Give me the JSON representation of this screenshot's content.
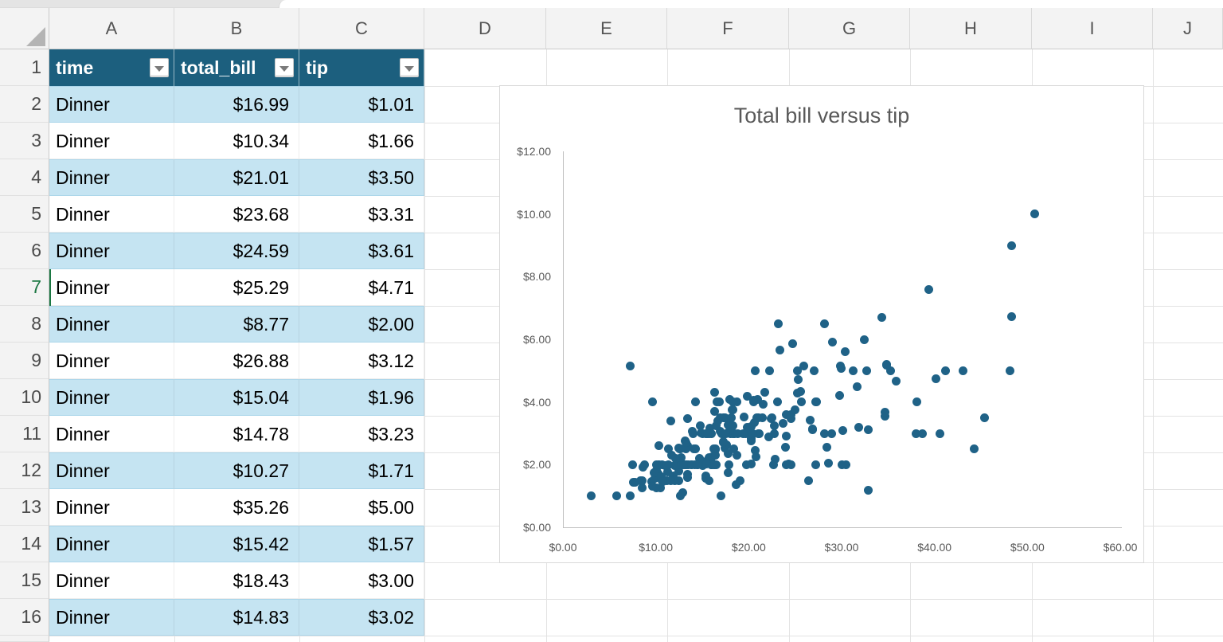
{
  "sheet": {
    "column_letters": [
      "A",
      "B",
      "C",
      "D",
      "E",
      "F",
      "G",
      "H",
      "I",
      "J"
    ],
    "row_numbers": [
      "1",
      "2",
      "3",
      "4",
      "5",
      "6",
      "7",
      "8",
      "9",
      "10",
      "11",
      "12",
      "13",
      "14",
      "15",
      "16"
    ],
    "active_row": "7",
    "active_cell": "A7"
  },
  "table": {
    "headers": [
      "time",
      "total_bill",
      "tip"
    ],
    "rows": [
      {
        "time": "Dinner",
        "total_bill": "$16.99",
        "tip": "$1.01"
      },
      {
        "time": "Dinner",
        "total_bill": "$10.34",
        "tip": "$1.66"
      },
      {
        "time": "Dinner",
        "total_bill": "$21.01",
        "tip": "$3.50"
      },
      {
        "time": "Dinner",
        "total_bill": "$23.68",
        "tip": "$3.31"
      },
      {
        "time": "Dinner",
        "total_bill": "$24.59",
        "tip": "$3.61"
      },
      {
        "time": "Dinner",
        "total_bill": "$25.29",
        "tip": "$4.71"
      },
      {
        "time": "Dinner",
        "total_bill": "$8.77",
        "tip": "$2.00"
      },
      {
        "time": "Dinner",
        "total_bill": "$26.88",
        "tip": "$3.12"
      },
      {
        "time": "Dinner",
        "total_bill": "$15.04",
        "tip": "$1.96"
      },
      {
        "time": "Dinner",
        "total_bill": "$14.78",
        "tip": "$3.23"
      },
      {
        "time": "Dinner",
        "total_bill": "$10.27",
        "tip": "$1.71"
      },
      {
        "time": "Dinner",
        "total_bill": "$35.26",
        "tip": "$5.00"
      },
      {
        "time": "Dinner",
        "total_bill": "$15.42",
        "tip": "$1.57"
      },
      {
        "time": "Dinner",
        "total_bill": "$18.43",
        "tip": "$3.00"
      },
      {
        "time": "Dinner",
        "total_bill": "$14.83",
        "tip": "$3.02"
      }
    ]
  },
  "colors": {
    "table_header": "#1C5F7E",
    "band_blue": "#C5E4F2",
    "active_green": "#1b7742",
    "chart_text": "#595959",
    "point_color": "#1F6287"
  },
  "chart_data": {
    "type": "scatter",
    "title": "Total bill versus tip",
    "xlabel": "",
    "ylabel": "",
    "xlim": [
      0,
      60
    ],
    "ylim": [
      0,
      12
    ],
    "x_tick_values": [
      0,
      10,
      20,
      30,
      40,
      50,
      60
    ],
    "x_tick_labels": [
      "$0.00",
      "$10.00",
      "$20.00",
      "$30.00",
      "$40.00",
      "$50.00",
      "$60.00"
    ],
    "y_tick_values": [
      0,
      2,
      4,
      6,
      8,
      10,
      12
    ],
    "y_tick_labels": [
      "$0.00",
      "$2.00",
      "$4.00",
      "$6.00",
      "$8.00",
      "$10.00",
      "$12.00"
    ],
    "grid": false,
    "legend": false,
    "point_color": "#1F6287",
    "points": [
      [
        16.99,
        1.01
      ],
      [
        10.34,
        1.66
      ],
      [
        21.01,
        3.5
      ],
      [
        23.68,
        3.31
      ],
      [
        24.59,
        3.61
      ],
      [
        25.29,
        4.71
      ],
      [
        8.77,
        2.0
      ],
      [
        26.88,
        3.12
      ],
      [
        15.04,
        1.96
      ],
      [
        14.78,
        3.23
      ],
      [
        10.27,
        1.71
      ],
      [
        35.26,
        5.0
      ],
      [
        15.42,
        1.57
      ],
      [
        18.43,
        3.0
      ],
      [
        14.83,
        3.02
      ],
      [
        21.58,
        3.92
      ],
      [
        10.33,
        1.67
      ],
      [
        16.29,
        3.71
      ],
      [
        16.97,
        3.5
      ],
      [
        20.65,
        3.35
      ],
      [
        17.92,
        4.08
      ],
      [
        20.29,
        2.75
      ],
      [
        15.77,
        2.23
      ],
      [
        39.42,
        7.58
      ],
      [
        19.82,
        3.18
      ],
      [
        17.81,
        2.34
      ],
      [
        13.37,
        2.0
      ],
      [
        12.69,
        2.0
      ],
      [
        21.7,
        4.3
      ],
      [
        19.65,
        3.0
      ],
      [
        9.55,
        1.45
      ],
      [
        18.35,
        2.5
      ],
      [
        15.06,
        3.0
      ],
      [
        20.69,
        2.45
      ],
      [
        17.78,
        3.27
      ],
      [
        24.06,
        3.6
      ],
      [
        16.31,
        2.0
      ],
      [
        16.93,
        3.07
      ],
      [
        18.69,
        2.31
      ],
      [
        31.27,
        5.0
      ],
      [
        16.04,
        2.24
      ],
      [
        17.46,
        2.54
      ],
      [
        13.94,
        3.06
      ],
      [
        9.68,
        1.32
      ],
      [
        30.4,
        5.6
      ],
      [
        18.29,
        3.0
      ],
      [
        22.23,
        5.0
      ],
      [
        32.4,
        6.0
      ],
      [
        28.55,
        2.05
      ],
      [
        18.04,
        3.0
      ],
      [
        12.54,
        2.5
      ],
      [
        10.29,
        2.6
      ],
      [
        34.81,
        5.2
      ],
      [
        9.94,
        1.56
      ],
      [
        25.56,
        4.34
      ],
      [
        19.49,
        3.51
      ],
      [
        38.01,
        3.0
      ],
      [
        26.41,
        1.5
      ],
      [
        11.24,
        1.76
      ],
      [
        48.27,
        6.73
      ],
      [
        20.29,
        3.21
      ],
      [
        13.81,
        2.0
      ],
      [
        11.02,
        1.98
      ],
      [
        18.29,
        3.76
      ],
      [
        17.59,
        2.64
      ],
      [
        20.08,
        3.15
      ],
      [
        16.45,
        2.47
      ],
      [
        3.07,
        1.0
      ],
      [
        20.23,
        2.01
      ],
      [
        15.01,
        2.09
      ],
      [
        12.02,
        1.97
      ],
      [
        17.07,
        3.0
      ],
      [
        26.86,
        3.14
      ],
      [
        25.28,
        5.0
      ],
      [
        14.73,
        2.2
      ],
      [
        10.51,
        1.25
      ],
      [
        17.92,
        3.08
      ],
      [
        27.2,
        4.0
      ],
      [
        22.76,
        3.0
      ],
      [
        17.29,
        2.71
      ],
      [
        19.44,
        3.0
      ],
      [
        16.66,
        3.4
      ],
      [
        10.07,
        1.83
      ],
      [
        32.68,
        5.0
      ],
      [
        15.98,
        2.03
      ],
      [
        34.83,
        5.17
      ],
      [
        13.03,
        2.0
      ],
      [
        18.28,
        4.0
      ],
      [
        24.71,
        5.85
      ],
      [
        21.16,
        3.0
      ],
      [
        28.97,
        3.0
      ],
      [
        22.49,
        3.5
      ],
      [
        5.75,
        1.0
      ],
      [
        16.32,
        4.3
      ],
      [
        22.75,
        3.25
      ],
      [
        40.17,
        4.73
      ],
      [
        27.28,
        4.0
      ],
      [
        12.03,
        1.5
      ],
      [
        21.01,
        3.0
      ],
      [
        12.46,
        1.5
      ],
      [
        11.35,
        2.5
      ],
      [
        15.38,
        3.0
      ],
      [
        44.3,
        2.5
      ],
      [
        22.42,
        3.48
      ],
      [
        20.92,
        4.08
      ],
      [
        15.36,
        1.64
      ],
      [
        20.49,
        4.06
      ],
      [
        25.21,
        4.29
      ],
      [
        18.24,
        3.76
      ],
      [
        14.31,
        4.0
      ],
      [
        14.0,
        3.0
      ],
      [
        7.25,
        1.0
      ],
      [
        38.07,
        4.0
      ],
      [
        23.95,
        2.55
      ],
      [
        25.71,
        4.0
      ],
      [
        17.31,
        3.5
      ],
      [
        29.93,
        5.07
      ],
      [
        10.65,
        1.5
      ],
      [
        12.43,
        1.8
      ],
      [
        24.08,
        2.92
      ],
      [
        11.69,
        2.31
      ],
      [
        13.42,
        1.68
      ],
      [
        14.26,
        2.5
      ],
      [
        15.95,
        2.0
      ],
      [
        12.48,
        2.52
      ],
      [
        29.8,
        4.2
      ],
      [
        8.52,
        1.48
      ],
      [
        14.52,
        2.0
      ],
      [
        11.38,
        2.0
      ],
      [
        22.82,
        2.18
      ],
      [
        19.08,
        1.5
      ],
      [
        20.27,
        2.83
      ],
      [
        11.17,
        1.5
      ],
      [
        12.26,
        2.0
      ],
      [
        18.26,
        3.25
      ],
      [
        8.51,
        1.25
      ],
      [
        10.33,
        2.0
      ],
      [
        14.15,
        2.0
      ],
      [
        16.0,
        2.0
      ],
      [
        13.16,
        2.75
      ],
      [
        17.47,
        3.5
      ],
      [
        34.3,
        6.7
      ],
      [
        41.19,
        5.0
      ],
      [
        27.05,
        5.0
      ],
      [
        16.43,
        2.3
      ],
      [
        8.35,
        1.5
      ],
      [
        18.64,
        1.36
      ],
      [
        11.87,
        1.63
      ],
      [
        9.78,
        1.73
      ],
      [
        7.51,
        2.0
      ],
      [
        14.07,
        2.5
      ],
      [
        13.13,
        2.0
      ],
      [
        17.26,
        2.74
      ],
      [
        24.55,
        2.0
      ],
      [
        19.77,
        2.0
      ],
      [
        29.85,
        5.14
      ],
      [
        48.17,
        5.0
      ],
      [
        25.0,
        3.75
      ],
      [
        13.39,
        2.61
      ],
      [
        16.49,
        2.0
      ],
      [
        21.5,
        3.5
      ],
      [
        12.66,
        2.5
      ],
      [
        16.21,
        2.0
      ],
      [
        13.81,
        2.0
      ],
      [
        17.51,
        3.0
      ],
      [
        24.52,
        3.48
      ],
      [
        20.76,
        2.24
      ],
      [
        31.71,
        4.5
      ],
      [
        10.59,
        1.61
      ],
      [
        10.63,
        2.0
      ],
      [
        50.81,
        10.0
      ],
      [
        15.81,
        3.16
      ],
      [
        7.25,
        5.15
      ],
      [
        31.85,
        3.18
      ],
      [
        16.82,
        4.0
      ],
      [
        32.9,
        3.11
      ],
      [
        17.89,
        2.0
      ],
      [
        14.48,
        2.0
      ],
      [
        9.6,
        4.0
      ],
      [
        34.63,
        3.55
      ],
      [
        34.65,
        3.68
      ],
      [
        23.33,
        5.65
      ],
      [
        45.35,
        3.5
      ],
      [
        23.17,
        6.5
      ],
      [
        40.55,
        3.0
      ],
      [
        20.69,
        5.0
      ],
      [
        20.9,
        3.5
      ],
      [
        30.46,
        2.0
      ],
      [
        18.15,
        3.5
      ],
      [
        23.1,
        4.0
      ],
      [
        15.69,
        1.5
      ],
      [
        19.81,
        4.19
      ],
      [
        28.44,
        2.56
      ],
      [
        15.48,
        2.02
      ],
      [
        16.58,
        4.0
      ],
      [
        7.56,
        1.44
      ],
      [
        10.34,
        2.0
      ],
      [
        43.11,
        5.0
      ],
      [
        13.0,
        2.0
      ],
      [
        13.51,
        2.0
      ],
      [
        18.71,
        4.0
      ],
      [
        12.74,
        2.01
      ],
      [
        13.0,
        2.0
      ],
      [
        16.4,
        2.5
      ],
      [
        20.53,
        4.0
      ],
      [
        16.47,
        3.23
      ],
      [
        26.59,
        3.41
      ],
      [
        38.73,
        3.0
      ],
      [
        24.27,
        2.03
      ],
      [
        12.76,
        2.23
      ],
      [
        30.06,
        2.0
      ],
      [
        25.89,
        5.16
      ],
      [
        48.33,
        9.0
      ],
      [
        13.27,
        2.5
      ],
      [
        28.17,
        6.5
      ],
      [
        12.9,
        1.1
      ],
      [
        28.15,
        3.0
      ],
      [
        11.59,
        1.5
      ],
      [
        7.74,
        1.44
      ],
      [
        30.14,
        3.09
      ],
      [
        12.16,
        2.2
      ],
      [
        13.42,
        3.48
      ],
      [
        8.58,
        1.92
      ],
      [
        15.98,
        3.0
      ],
      [
        13.42,
        1.58
      ],
      [
        16.27,
        2.5
      ],
      [
        10.09,
        2.0
      ],
      [
        20.45,
        3.0
      ],
      [
        13.28,
        2.72
      ],
      [
        22.12,
        2.88
      ],
      [
        24.01,
        2.0
      ],
      [
        15.69,
        3.0
      ],
      [
        11.61,
        3.39
      ],
      [
        10.77,
        1.47
      ],
      [
        15.53,
        3.0
      ],
      [
        10.07,
        1.25
      ],
      [
        12.6,
        1.0
      ],
      [
        32.83,
        1.17
      ],
      [
        35.83,
        4.67
      ],
      [
        29.03,
        5.92
      ],
      [
        27.18,
        2.0
      ],
      [
        22.67,
        2.0
      ],
      [
        17.82,
        1.75
      ],
      [
        18.78,
        3.0
      ]
    ]
  }
}
